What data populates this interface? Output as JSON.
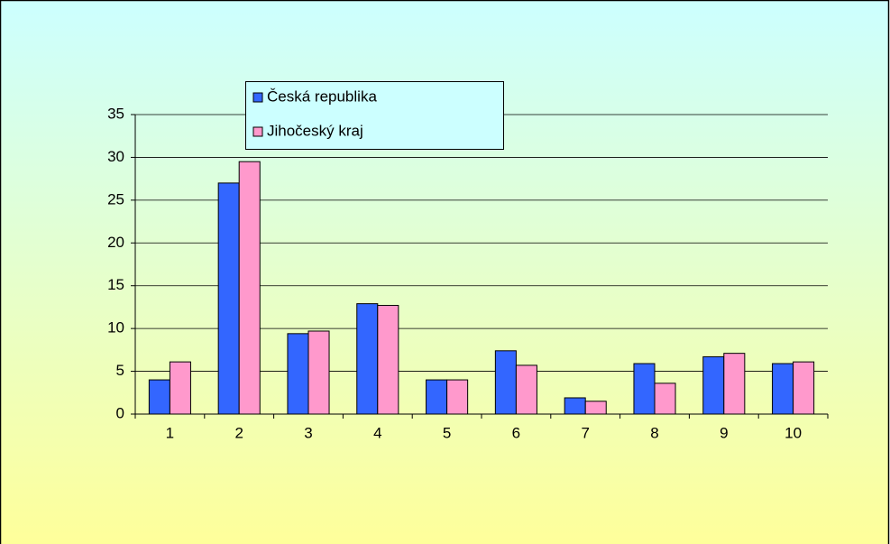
{
  "chart_data": {
    "type": "bar",
    "categories": [
      "1",
      "2",
      "3",
      "4",
      "5",
      "6",
      "7",
      "8",
      "9",
      "10"
    ],
    "series": [
      {
        "name": "Česká republika",
        "color": "#3366ff",
        "values": [
          4.0,
          27.0,
          9.4,
          12.9,
          4.0,
          7.4,
          1.9,
          5.9,
          6.7,
          5.9
        ]
      },
      {
        "name": "Jihočeský kraj",
        "color": "#ff99cc",
        "values": [
          6.1,
          29.5,
          9.7,
          12.7,
          4.0,
          5.7,
          1.5,
          3.6,
          7.1,
          6.1
        ]
      }
    ],
    "ylim": [
      0,
      35
    ],
    "yticks": [
      0,
      5,
      10,
      15,
      20,
      25,
      30,
      35
    ],
    "grid": true,
    "legend": "top"
  }
}
